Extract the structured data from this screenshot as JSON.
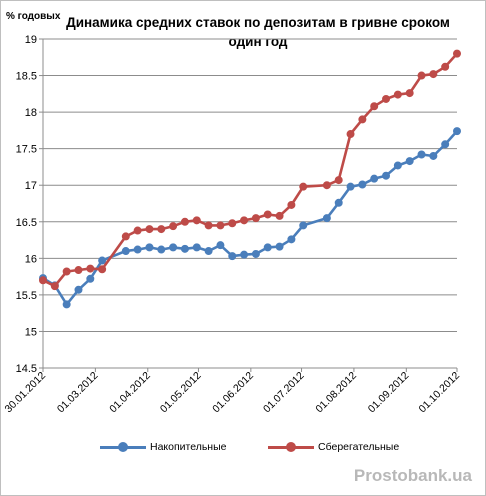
{
  "chart_data": {
    "type": "line",
    "title": "Динамика средних ставок по депозитам в гривне сроком один год",
    "ylabel": "% годовых",
    "xlabel": "",
    "ylim": [
      14.5,
      19
    ],
    "yticks": [
      "14.5",
      "15",
      "15.5",
      "16",
      "16.5",
      "17",
      "17.5",
      "18",
      "18.5",
      "19"
    ],
    "xtick_labels": [
      "30.01.2012",
      "01.03.2012",
      "01.04.2012",
      "01.05.2012",
      "01.06.2012",
      "01.07.2012",
      "01.08.2012",
      "01.09.2012",
      "01.10.2012"
    ],
    "xtick_dates": [
      "2012-01-30",
      "2012-03-01",
      "2012-04-01",
      "2012-05-01",
      "2012-06-01",
      "2012-07-01",
      "2012-08-01",
      "2012-09-01",
      "2012-10-01"
    ],
    "x_range": [
      "2012-01-30",
      "2012-10-01"
    ],
    "grid": "horizontal",
    "legend_position": "bottom",
    "series": [
      {
        "name": "Накопительные",
        "color": "#4a7ebb",
        "x": [
          "2012-01-30",
          "2012-02-06",
          "2012-02-13",
          "2012-02-20",
          "2012-02-27",
          "2012-03-05",
          "2012-03-19",
          "2012-03-26",
          "2012-04-02",
          "2012-04-09",
          "2012-04-16",
          "2012-04-23",
          "2012-04-30",
          "2012-05-07",
          "2012-05-14",
          "2012-05-21",
          "2012-05-28",
          "2012-06-04",
          "2012-06-11",
          "2012-06-18",
          "2012-06-25",
          "2012-07-02",
          "2012-07-16",
          "2012-07-23",
          "2012-07-30",
          "2012-08-06",
          "2012-08-13",
          "2012-08-20",
          "2012-08-27",
          "2012-09-03",
          "2012-09-10",
          "2012-09-17",
          "2012-09-24",
          "2012-10-01"
        ],
        "values": [
          15.73,
          15.63,
          15.37,
          15.57,
          15.72,
          15.97,
          16.1,
          16.12,
          16.15,
          16.12,
          16.15,
          16.13,
          16.15,
          16.1,
          16.18,
          16.03,
          16.05,
          16.06,
          16.15,
          16.16,
          16.26,
          16.45,
          16.55,
          16.76,
          16.98,
          17.01,
          17.09,
          17.13,
          17.27,
          17.33,
          17.42,
          17.4,
          17.56,
          17.74
        ]
      },
      {
        "name": "Сберегательные",
        "color": "#be4b48",
        "x": [
          "2012-01-30",
          "2012-02-06",
          "2012-02-13",
          "2012-02-20",
          "2012-02-27",
          "2012-03-05",
          "2012-03-19",
          "2012-03-26",
          "2012-04-02",
          "2012-04-09",
          "2012-04-16",
          "2012-04-23",
          "2012-04-30",
          "2012-05-07",
          "2012-05-14",
          "2012-05-21",
          "2012-05-28",
          "2012-06-04",
          "2012-06-11",
          "2012-06-18",
          "2012-06-25",
          "2012-07-02",
          "2012-07-16",
          "2012-07-23",
          "2012-07-30",
          "2012-08-06",
          "2012-08-13",
          "2012-08-20",
          "2012-08-27",
          "2012-09-03",
          "2012-09-10",
          "2012-09-17",
          "2012-09-24",
          "2012-10-01"
        ],
        "values": [
          15.7,
          15.62,
          15.82,
          15.84,
          15.86,
          15.85,
          16.3,
          16.38,
          16.4,
          16.4,
          16.44,
          16.5,
          16.52,
          16.45,
          16.45,
          16.48,
          16.52,
          16.55,
          16.6,
          16.58,
          16.73,
          16.98,
          17.0,
          17.07,
          17.7,
          17.9,
          18.08,
          18.18,
          18.24,
          18.26,
          18.5,
          18.52,
          18.62,
          18.8
        ]
      }
    ]
  },
  "watermark": "Prostobank.ua"
}
